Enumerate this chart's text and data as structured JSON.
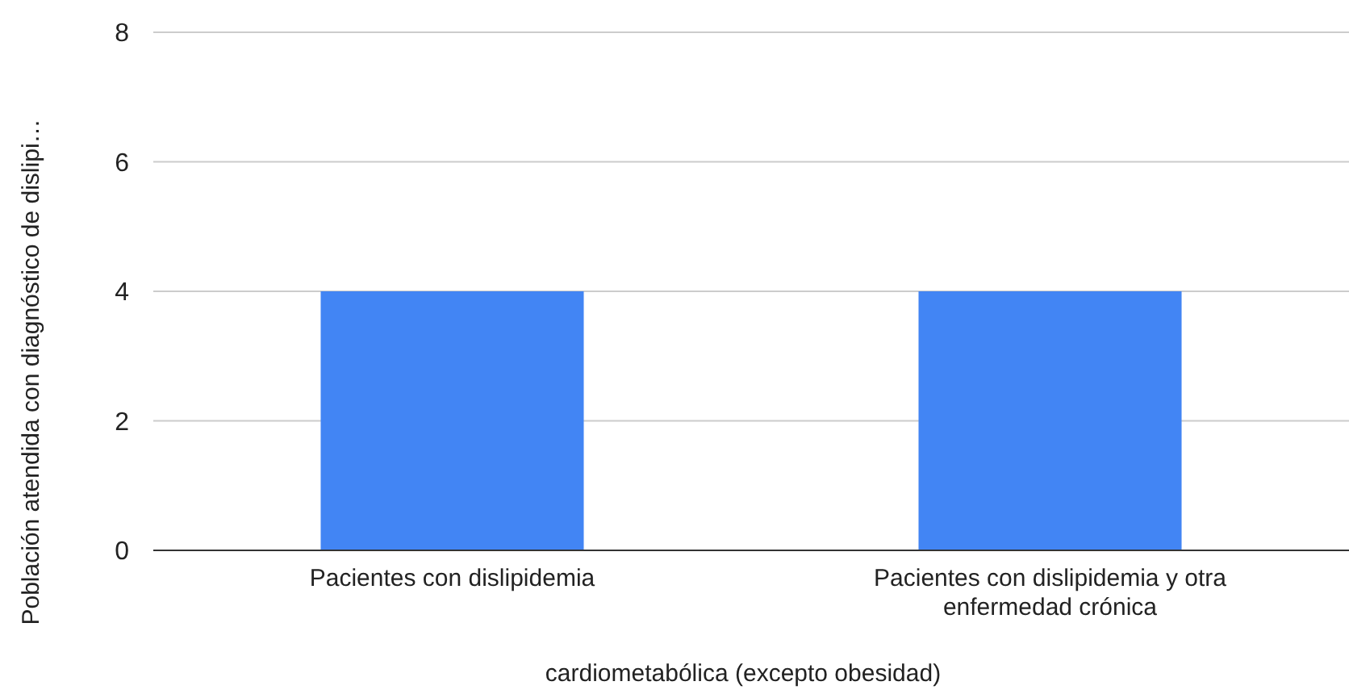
{
  "chart_data": {
    "type": "bar",
    "ylabel": "Población atendida con diagnóstico de dislipi…",
    "xlabel": "cardiometabólica (excepto obesidad)",
    "categories": [
      "Pacientes con dislipidemia",
      "Pacientes con dislipidemia y otra enfermedad crónica"
    ],
    "values": [
      4,
      4
    ],
    "color": "#4285f4",
    "ylim": [
      0,
      8
    ],
    "yticks": [
      0,
      2,
      4,
      6,
      8
    ],
    "grid": "y"
  }
}
